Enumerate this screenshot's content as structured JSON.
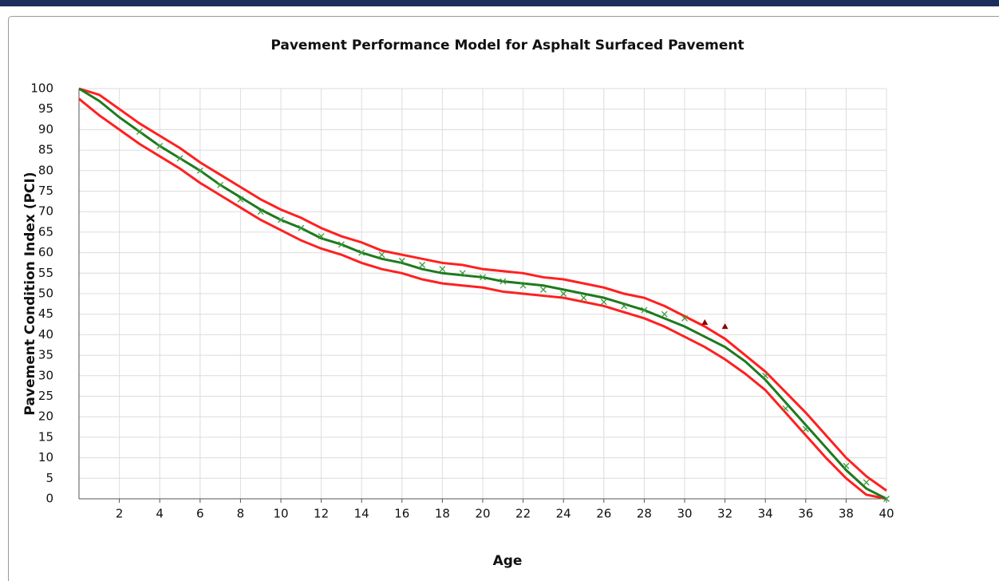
{
  "chart_data": {
    "type": "line",
    "title": "Pavement Performance Model for Asphalt Surfaced Pavement",
    "x_label": "Age",
    "y_label": "Pavement Condition Index (PCI)",
    "xlim": [
      0,
      40
    ],
    "ylim": [
      0,
      100
    ],
    "xticks": [
      2,
      4,
      6,
      8,
      10,
      12,
      14,
      16,
      18,
      20,
      22,
      24,
      26,
      28,
      30,
      32,
      34,
      36,
      38,
      40
    ],
    "yticks": [
      0,
      5,
      10,
      15,
      20,
      25,
      30,
      35,
      40,
      45,
      50,
      55,
      60,
      65,
      70,
      75,
      80,
      85,
      90,
      95,
      100
    ],
    "grid": true,
    "x": [
      0,
      1,
      2,
      3,
      4,
      5,
      6,
      7,
      8,
      9,
      10,
      11,
      12,
      13,
      14,
      15,
      16,
      17,
      18,
      19,
      20,
      21,
      22,
      23,
      24,
      25,
      26,
      27,
      28,
      29,
      30,
      31,
      32,
      33,
      34,
      35,
      36,
      37,
      38,
      39,
      40
    ],
    "series": [
      {
        "style": "line",
        "color": "#ff2020",
        "values": [
          100,
          98.5,
          95,
          91.5,
          88.5,
          85.5,
          82,
          79,
          76,
          73,
          70.5,
          68.5,
          66,
          64,
          62.5,
          60.5,
          59.5,
          58.5,
          57.5,
          57,
          56,
          55.5,
          55,
          54,
          53.5,
          52.5,
          51.5,
          50,
          49,
          47,
          44.5,
          42,
          39,
          35,
          31,
          26,
          21,
          15.5,
          10,
          5.5,
          2
        ]
      },
      {
        "style": "line",
        "color": "#ff2020",
        "values": [
          97.5,
          93.5,
          90,
          86.5,
          83.5,
          80.5,
          77,
          74,
          71,
          68,
          65.5,
          63,
          61,
          59.5,
          57.5,
          56,
          55,
          53.5,
          52.5,
          52,
          51.5,
          50.5,
          50,
          49.5,
          49,
          48,
          47,
          45.5,
          44,
          42,
          39.5,
          37,
          34,
          30.5,
          26.5,
          21,
          15.5,
          10,
          5,
          1,
          0
        ]
      },
      {
        "style": "line",
        "color": "#1e7a1e",
        "values": [
          100,
          97,
          93,
          89.5,
          86,
          83,
          80,
          76.5,
          73.5,
          70.5,
          68,
          66,
          63.5,
          62,
          60,
          58.5,
          57.5,
          56,
          55,
          54.5,
          54,
          53,
          52.5,
          52,
          51,
          50,
          49,
          47.5,
          46,
          44,
          42,
          39.5,
          37,
          33.5,
          29,
          23.5,
          18,
          12.5,
          7,
          2.5,
          0
        ]
      },
      {
        "style": "x",
        "color": "#3c9a3c",
        "x": [
          3,
          4,
          5,
          6,
          7,
          8,
          9,
          10,
          11,
          12,
          13,
          14,
          15,
          16,
          17,
          18,
          19,
          20,
          21,
          22,
          23,
          24,
          25,
          26,
          27,
          28,
          29,
          30,
          34,
          35,
          36,
          38,
          39,
          40
        ],
        "values": [
          89.5,
          86,
          83,
          80,
          76.5,
          73,
          70,
          68,
          66,
          64,
          62,
          60,
          59.5,
          58,
          57,
          56,
          55,
          54,
          53,
          52,
          51,
          50,
          49,
          48,
          47,
          46,
          45,
          44,
          30,
          22,
          17,
          8,
          4,
          0
        ]
      },
      {
        "style": "triangle",
        "color": "#8b0000",
        "x": [
          31,
          32
        ],
        "values": [
          43,
          42
        ]
      }
    ]
  }
}
